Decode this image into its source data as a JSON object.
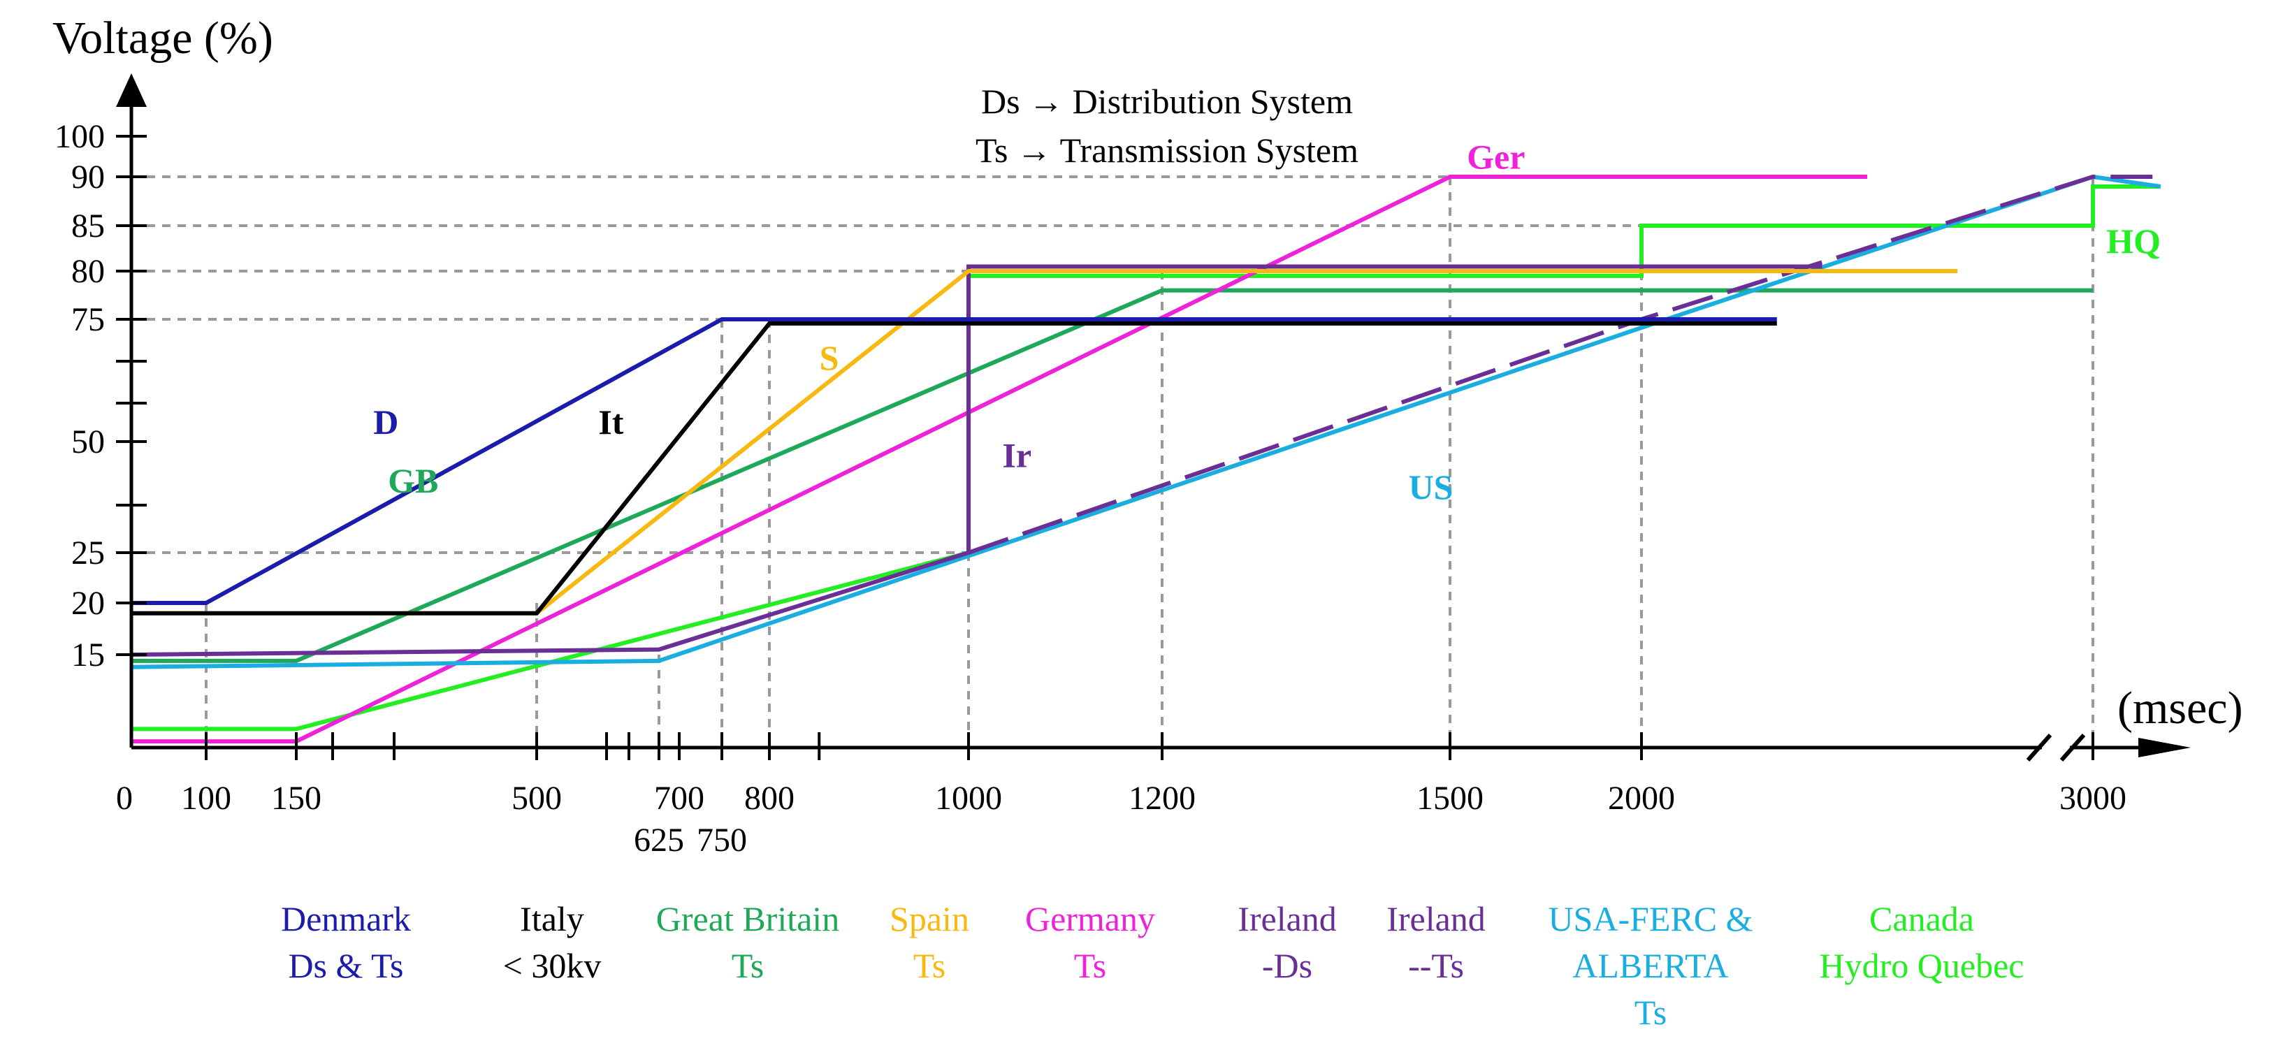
{
  "chart_data": {
    "type": "line",
    "title": "",
    "ylabel": "Voltage (%)",
    "xlabel": "(msec)",
    "annotations": [
      "Ds → Distribution System",
      "Ts → Transmission System"
    ],
    "x_ticks": [
      {
        "value": 0,
        "label": "0",
        "row": 1
      },
      {
        "value": 100,
        "label": "100",
        "row": 1
      },
      {
        "value": 150,
        "label": "150",
        "row": 1
      },
      {
        "value": 500,
        "label": "500",
        "row": 1
      },
      {
        "value": 625,
        "label": "625",
        "row": 2
      },
      {
        "value": 700,
        "label": "700",
        "row": 1
      },
      {
        "value": 750,
        "label": "750",
        "row": 2
      },
      {
        "value": 800,
        "label": "800",
        "row": 1
      },
      {
        "value": 1000,
        "label": "1000",
        "row": 1
      },
      {
        "value": 1200,
        "label": "1200",
        "row": 1
      },
      {
        "value": 1500,
        "label": "1500",
        "row": 1
      },
      {
        "value": 2000,
        "label": "2000",
        "row": 1
      },
      {
        "value": 3000,
        "label": "3000",
        "row": 1
      }
    ],
    "x_minor_ticks": [
      200,
      350,
      550,
      600,
      850
    ],
    "x_tick_positions": [
      {
        "value": 0,
        "u": 0
      },
      {
        "value": 100,
        "u": 107
      },
      {
        "value": 150,
        "u": 236
      },
      {
        "value": 200,
        "u": 288
      },
      {
        "value": 350,
        "u": 376
      },
      {
        "value": 500,
        "u": 580
      },
      {
        "value": 550,
        "u": 680
      },
      {
        "value": 600,
        "u": 712
      },
      {
        "value": 625,
        "u": 755
      },
      {
        "value": 700,
        "u": 784
      },
      {
        "value": 750,
        "u": 845
      },
      {
        "value": 800,
        "u": 913
      },
      {
        "value": 1000,
        "u": 1198
      },
      {
        "value": 1200,
        "u": 1475
      },
      {
        "value": 1500,
        "u": 1887
      },
      {
        "value": 2000,
        "u": 2161
      },
      {
        "value": 3000,
        "u": 2807
      }
    ],
    "axis_break": {
      "after": 2000,
      "before": 3000
    },
    "y_ticks": [
      {
        "value": 15,
        "label": "15"
      },
      {
        "value": 20,
        "label": "20"
      },
      {
        "value": 25,
        "label": "25"
      },
      {
        "value": 30,
        "label": ""
      },
      {
        "value": 50,
        "label": "50"
      },
      {
        "value": 60,
        "label": ""
      },
      {
        "value": 70,
        "label": ""
      },
      {
        "value": 75,
        "label": "75"
      },
      {
        "value": 80,
        "label": "80"
      },
      {
        "value": 85,
        "label": "85"
      },
      {
        "value": 90,
        "label": "90"
      },
      {
        "value": 100,
        "label": "100"
      }
    ],
    "y_tick_positions": [
      {
        "value": 0,
        "v": 0
      },
      {
        "value": 15,
        "v": 133
      },
      {
        "value": 20,
        "v": 207
      },
      {
        "value": 25,
        "v": 279
      },
      {
        "value": 30,
        "v": 347
      },
      {
        "value": 50,
        "v": 438
      },
      {
        "value": 60,
        "v": 493
      },
      {
        "value": 70,
        "v": 553
      },
      {
        "value": 75,
        "v": 613
      },
      {
        "value": 80,
        "v": 682
      },
      {
        "value": 85,
        "v": 747
      },
      {
        "value": 90,
        "v": 817
      },
      {
        "value": 100,
        "v": 875
      }
    ],
    "reference_lines": {
      "horizontal": [
        {
          "y": 90,
          "to_x": 1500
        },
        {
          "y": 85,
          "to_x": 2000
        },
        {
          "y": 80,
          "to_x": 1000
        },
        {
          "y": 75,
          "to_x": 750
        },
        {
          "y": 25,
          "to_x": 1000
        }
      ],
      "vertical": [
        {
          "x": 100,
          "from_y": 20
        },
        {
          "x": 500,
          "from_y": 20
        },
        {
          "x": 625,
          "from_y": 15
        },
        {
          "x": 750,
          "from_y": 75
        },
        {
          "x": 800,
          "from_y": 75
        },
        {
          "x": 1000,
          "from_y": 25
        },
        {
          "x": 1200,
          "from_y": 80
        },
        {
          "x": 1500,
          "from_y": 90
        },
        {
          "x": 2000,
          "from_y": 85
        },
        {
          "x": 3000,
          "from_y": 90
        }
      ]
    },
    "series": [
      {
        "name": "Canada Hydro Quebec",
        "code": "HQ",
        "color": "#22ee22",
        "dashed": false,
        "points": [
          [
            0,
            3
          ],
          [
            150,
            3
          ],
          [
            1000,
            25
          ],
          [
            1000,
            79.5
          ],
          [
            2000,
            79.5
          ],
          [
            2000,
            85
          ],
          [
            3000,
            85
          ],
          [
            3000,
            89
          ],
          [
            3150,
            89
          ]
        ]
      },
      {
        "name": "Great Britain Ts",
        "code": "GB",
        "color": "#1fa85a",
        "dashed": false,
        "points": [
          [
            0,
            14
          ],
          [
            150,
            14
          ],
          [
            1200,
            78
          ],
          [
            3000,
            78
          ]
        ]
      },
      {
        "name": "Germany Ts",
        "code": "Ger",
        "color": "#ee22d8",
        "dashed": false,
        "points": [
          [
            0,
            1
          ],
          [
            150,
            1
          ],
          [
            1500,
            90
          ],
          [
            2500,
            90
          ]
        ]
      },
      {
        "name": "USA-FERC & ALBERTA Ts",
        "code": "US",
        "color": "#1aaee0",
        "dashed": false,
        "points": [
          [
            0,
            13
          ],
          [
            625,
            14
          ],
          [
            2000,
            74
          ],
          [
            3000,
            90
          ],
          [
            3150,
            89
          ]
        ]
      },
      {
        "name": "Ireland -Ds",
        "code": "Ir",
        "color": "#6a2f96",
        "dashed": false,
        "points": [
          [
            0,
            15
          ],
          [
            625,
            15.5
          ],
          [
            1000,
            25
          ],
          [
            1000,
            80.5
          ],
          [
            2400,
            80.5
          ]
        ]
      },
      {
        "name": "Ireland --Ts",
        "code": "Ir",
        "color": "#6a2f96",
        "dashed": true,
        "points": [
          [
            1000,
            25
          ],
          [
            2000,
            75
          ],
          [
            3000,
            90
          ],
          [
            3150,
            90
          ]
        ]
      },
      {
        "name": "Spain Ts",
        "code": "S",
        "color": "#f7b90f",
        "dashed": false,
        "points": [
          [
            0,
            19
          ],
          [
            500,
            19
          ],
          [
            1000,
            80
          ],
          [
            2700,
            80
          ]
        ]
      },
      {
        "name": "Denmark Ds & Ts",
        "code": "D",
        "color": "#1c1caa",
        "dashed": false,
        "points": [
          [
            0,
            20
          ],
          [
            100,
            20
          ],
          [
            750,
            75
          ],
          [
            2300,
            75
          ]
        ]
      },
      {
        "name": "Italy < 30kv",
        "code": "It",
        "color": "#000000",
        "dashed": false,
        "points": [
          [
            0,
            19
          ],
          [
            500,
            19
          ],
          [
            800,
            74.5
          ],
          [
            2300,
            74.5
          ]
        ]
      }
    ],
    "line_labels": [
      {
        "text": "D",
        "color": "#1c1caa"
      },
      {
        "text": "It",
        "color": "#000000"
      },
      {
        "text": "GB",
        "color": "#1fa85a"
      },
      {
        "text": "S",
        "color": "#f7b90f"
      },
      {
        "text": "Ir",
        "color": "#6a2f96"
      },
      {
        "text": "US",
        "color": "#1aaee0"
      },
      {
        "text": "Ger",
        "color": "#ee22d8"
      },
      {
        "text": "HQ",
        "color": "#22ee22"
      }
    ],
    "legend": [
      {
        "lines": [
          "Denmark",
          "Ds & Ts"
        ],
        "color": "#1c1caa"
      },
      {
        "lines": [
          "Italy",
          "< 30kv"
        ],
        "color": "#000000"
      },
      {
        "lines": [
          "Great Britain",
          "Ts"
        ],
        "color": "#1fa85a"
      },
      {
        "lines": [
          "Spain",
          "Ts"
        ],
        "color": "#f7b90f"
      },
      {
        "lines": [
          "Germany",
          "Ts"
        ],
        "color": "#ee22d8"
      },
      {
        "lines": [
          "Ireland",
          "-Ds"
        ],
        "color": "#6a2f96"
      },
      {
        "lines": [
          "Ireland",
          "--Ts"
        ],
        "color": "#6a2f96"
      },
      {
        "lines": [
          "USA-FERC &",
          "ALBERTA",
          "Ts"
        ],
        "color": "#1aaee0"
      },
      {
        "lines": [
          "Canada",
          "Hydro Quebec"
        ],
        "color": "#22ee22"
      }
    ]
  }
}
